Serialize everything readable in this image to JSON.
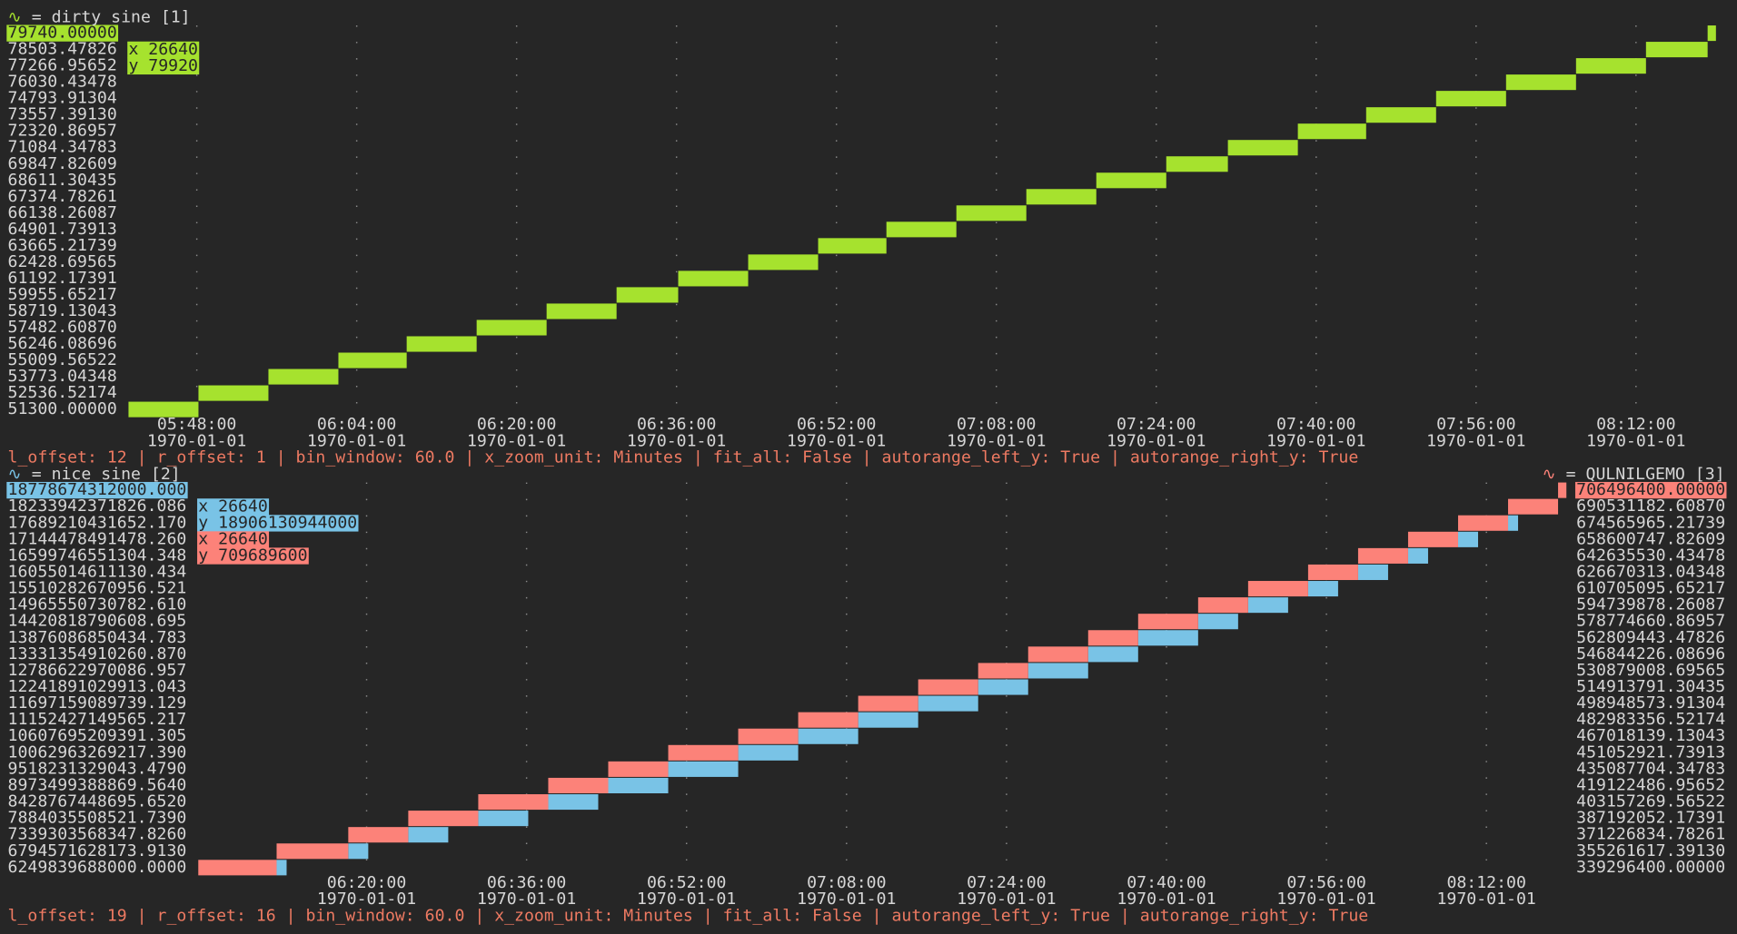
{
  "legend_sep": "=",
  "chart_data": [
    {
      "type": "bar",
      "status": "l_offset: 12 | r_offset: 1 | bin_window: 60.0 | x_zoom_unit: Minutes | fit_all: False | autorange_left_y: True | autorange_right_y: True",
      "status_color": "#ee7a62",
      "grid": true,
      "xlim": [
        20470,
        30000
      ],
      "xticks": [
        {
          "value": 20880,
          "label": "05:48:00\n1970-01-01"
        },
        {
          "value": 21840,
          "label": "06:04:00\n1970-01-01"
        },
        {
          "value": 22800,
          "label": "06:20:00\n1970-01-01"
        },
        {
          "value": 23760,
          "label": "06:36:00\n1970-01-01"
        },
        {
          "value": 24720,
          "label": "06:52:00\n1970-01-01"
        },
        {
          "value": 25680,
          "label": "07:08:00\n1970-01-01"
        },
        {
          "value": 26640,
          "label": "07:24:00\n1970-01-01"
        },
        {
          "value": 27600,
          "label": "07:40:00\n1970-01-01"
        },
        {
          "value": 28560,
          "label": "07:56:00\n1970-01-01"
        },
        {
          "value": 29520,
          "label": "08:12:00\n1970-01-01"
        }
      ],
      "ylim": [
        51300,
        79740
      ],
      "yticks": [
        {
          "value": 79740,
          "label": "79740.00000"
        },
        {
          "value": 78503.47826,
          "label": "78503.47826"
        },
        {
          "value": 77266.95652,
          "label": "77266.95652"
        },
        {
          "value": 76030.43478,
          "label": "76030.43478"
        },
        {
          "value": 74793.91304,
          "label": "74793.91304"
        },
        {
          "value": 73557.3913,
          "label": "73557.39130"
        },
        {
          "value": 72320.86957,
          "label": "72320.86957"
        },
        {
          "value": 71084.34783,
          "label": "71084.34783"
        },
        {
          "value": 69847.82609,
          "label": "69847.82609"
        },
        {
          "value": 68611.30435,
          "label": "68611.30435"
        },
        {
          "value": 67374.78261,
          "label": "67374.78261"
        },
        {
          "value": 66138.26087,
          "label": "66138.26087"
        },
        {
          "value": 64901.73913,
          "label": "64901.73913"
        },
        {
          "value": 63665.21739,
          "label": "63665.21739"
        },
        {
          "value": 62428.69565,
          "label": "62428.69565"
        },
        {
          "value": 61192.17391,
          "label": "61192.17391"
        },
        {
          "value": 59955.65217,
          "label": "59955.65217"
        },
        {
          "value": 58719.13043,
          "label": "58719.13043"
        },
        {
          "value": 57482.6087,
          "label": "57482.60870"
        },
        {
          "value": 56246.08696,
          "label": "56246.08696"
        },
        {
          "value": 55009.56522,
          "label": "55009.56522"
        },
        {
          "value": 53773.04348,
          "label": "53773.04348"
        },
        {
          "value": 52536.52174,
          "label": "52536.52174"
        },
        {
          "value": 51300,
          "label": "51300.00000"
        }
      ],
      "series": [
        {
          "name": "dirty sine [1]",
          "symbol": "∿",
          "color": "#a6e22e",
          "axis": "y",
          "legend_corner": "top-left",
          "cursor_labels": [
            "x 26640",
            "y 79920"
          ],
          "bins": [
            20470,
            20890,
            21310,
            21730,
            22140,
            22560,
            22980,
            23400,
            23770,
            24190,
            24610,
            25020,
            25440,
            25860,
            26280,
            26700,
            27070,
            27490,
            27900,
            28320,
            28740,
            29160,
            29580,
            29950,
            30000
          ],
          "values": [
            51300,
            52536.52174,
            53773.04348,
            55009.56522,
            56246.08696,
            57482.6087,
            58719.13043,
            59955.65217,
            61192.17391,
            62428.69565,
            63665.21739,
            64901.73913,
            66138.26087,
            67374.78261,
            68611.30435,
            69847.82609,
            71084.34783,
            72320.86957,
            73557.3913,
            74793.91304,
            76030.43478,
            77266.95652,
            78503.47826,
            79740
          ]
        }
      ]
    },
    {
      "type": "bar",
      "status": "l_offset: 19 | r_offset: 16 | bin_window: 60.0 | x_zoom_unit: Minutes | fit_all: False | autorange_left_y: True | autorange_right_y: True",
      "status_color": "#ee7a62",
      "grid": true,
      "xlim": [
        21790,
        30000
      ],
      "xticks": [
        {
          "value": 22800,
          "label": "06:20:00\n1970-01-01"
        },
        {
          "value": 23760,
          "label": "06:36:00\n1970-01-01"
        },
        {
          "value": 24720,
          "label": "06:52:00\n1970-01-01"
        },
        {
          "value": 25680,
          "label": "07:08:00\n1970-01-01"
        },
        {
          "value": 26640,
          "label": "07:24:00\n1970-01-01"
        },
        {
          "value": 27600,
          "label": "07:40:00\n1970-01-01"
        },
        {
          "value": 28560,
          "label": "07:56:00\n1970-01-01"
        },
        {
          "value": 29520,
          "label": "08:12:00\n1970-01-01"
        }
      ],
      "ylim": [
        6249839688000,
        18778674312000
      ],
      "yticks": [
        {
          "value": 18778674312000,
          "label": "18778674312000.000"
        },
        {
          "value": 18233942371826.086,
          "label": "18233942371826.086"
        },
        {
          "value": 17689210431652.17,
          "label": "17689210431652.170"
        },
        {
          "value": 17144478491478.26,
          "label": "17144478491478.260"
        },
        {
          "value": 16599746551304.348,
          "label": "16599746551304.348"
        },
        {
          "value": 16055014611130.434,
          "label": "16055014611130.434"
        },
        {
          "value": 15510282670956.521,
          "label": "15510282670956.521"
        },
        {
          "value": 14965550730782.61,
          "label": "14965550730782.610"
        },
        {
          "value": 14420818790608.695,
          "label": "14420818790608.695"
        },
        {
          "value": 13876086850434.783,
          "label": "13876086850434.783"
        },
        {
          "value": 13331354910260.87,
          "label": "13331354910260.870"
        },
        {
          "value": 12786622970086.957,
          "label": "12786622970086.957"
        },
        {
          "value": 12241891029913.043,
          "label": "12241891029913.043"
        },
        {
          "value": 11697159089739.129,
          "label": "11697159089739.129"
        },
        {
          "value": 11152427149565.217,
          "label": "11152427149565.217"
        },
        {
          "value": 10607695209391.305,
          "label": "10607695209391.305"
        },
        {
          "value": 10062963269217.39,
          "label": "10062963269217.390"
        },
        {
          "value": 9518231329043.479,
          "label": "9518231329043.4790"
        },
        {
          "value": 8973499388869.564,
          "label": "8973499388869.5640"
        },
        {
          "value": 8428767448695.652,
          "label": "8428767448695.6520"
        },
        {
          "value": 7884035508521.739,
          "label": "7884035508521.7390"
        },
        {
          "value": 7339303568347.826,
          "label": "7339303568347.8260"
        },
        {
          "value": 6794571628173.913,
          "label": "6794571628173.9130"
        },
        {
          "value": 6249839688000,
          "label": "6249839688000.0000"
        }
      ],
      "y2lim": [
        339296400,
        706496400
      ],
      "y2ticks": [
        {
          "value": 706496400,
          "label": "706496400.00000"
        },
        {
          "value": 690531182.6087,
          "label": "690531182.60870"
        },
        {
          "value": 674565965.21739,
          "label": "674565965.21739"
        },
        {
          "value": 658600747.82609,
          "label": "658600747.82609"
        },
        {
          "value": 642635530.43478,
          "label": "642635530.43478"
        },
        {
          "value": 626670313.04348,
          "label": "626670313.04348"
        },
        {
          "value": 610705095.65217,
          "label": "610705095.65217"
        },
        {
          "value": 594739878.26087,
          "label": "594739878.26087"
        },
        {
          "value": 578774660.86957,
          "label": "578774660.86957"
        },
        {
          "value": 562809443.47826,
          "label": "562809443.47826"
        },
        {
          "value": 546844226.08696,
          "label": "546844226.08696"
        },
        {
          "value": 530879008.69565,
          "label": "530879008.69565"
        },
        {
          "value": 514913791.30435,
          "label": "514913791.30435"
        },
        {
          "value": 498948573.91304,
          "label": "498948573.91304"
        },
        {
          "value": 482983356.52174,
          "label": "482983356.52174"
        },
        {
          "value": 467018139.13043,
          "label": "467018139.13043"
        },
        {
          "value": 451052921.73913,
          "label": "451052921.73913"
        },
        {
          "value": 435087704.34783,
          "label": "435087704.34783"
        },
        {
          "value": 419122486.95652,
          "label": "419122486.95652"
        },
        {
          "value": 403157269.56522,
          "label": "403157269.56522"
        },
        {
          "value": 387192052.17391,
          "label": "387192052.17391"
        },
        {
          "value": 371226834.78261,
          "label": "371226834.78261"
        },
        {
          "value": 355261617.3913,
          "label": "355261617.39130"
        },
        {
          "value": 339296400,
          "label": "339296400.00000"
        }
      ],
      "series": [
        {
          "name": "nice sine [2]",
          "symbol": "∿",
          "color": "#79c3e6",
          "axis": "y",
          "legend_corner": "top-left",
          "cursor_labels": [
            "x 26640",
            "y 18906130944000"
          ],
          "bins": [
            22260,
            22320,
            22690,
            22810,
            23050,
            23290,
            23470,
            23770,
            23890,
            24190,
            24250,
            24610,
            25030,
            25390,
            25750,
            26110,
            26470,
            26770,
            27130,
            27430,
            27790,
            28030,
            28090,
            28330,
            28450,
            28630,
            28750,
            28930,
            29050,
            29170,
            29350,
            29470,
            29650,
            29710
          ],
          "values": [
            6249839688000,
            null,
            6794571628173.913,
            null,
            7339303568347.826,
            null,
            7884035508521.739,
            null,
            8428767448695.652,
            null,
            8973499388869.564,
            9518231329043.479,
            10062963269217.39,
            10607695209391.305,
            11152427149565.217,
            11697159089739.129,
            12241891029913.043,
            12786622970086.957,
            13331354910260.87,
            13876086850434.783,
            14420818790608.695,
            null,
            14965550730782.61,
            null,
            15510282670956.521,
            null,
            16055014611130.434,
            null,
            16599746551304.348,
            null,
            17144478491478.26,
            null,
            17689210431652.17
          ]
        },
        {
          "name": "QULNILGEMO [3]",
          "symbol": "∿",
          "color": "#fc8279",
          "axis": "y2",
          "legend_corner": "top-right",
          "cursor_labels": [
            "x 26640",
            "y 709689600"
          ],
          "bins": [
            21790,
            22260,
            22690,
            23050,
            23470,
            23890,
            24250,
            24610,
            25030,
            25390,
            25750,
            26110,
            26470,
            26770,
            27130,
            27430,
            27790,
            28090,
            28450,
            28750,
            29050,
            29350,
            29650,
            29950,
            30000
          ],
          "values": [
            339296400,
            355261617.3913,
            371226834.78261,
            387192052.17391,
            403157269.56522,
            419122486.95652,
            435087704.34783,
            451052921.73913,
            467018139.13043,
            482983356.52174,
            498948573.91304,
            514913791.30435,
            530879008.69565,
            546844226.08696,
            562809443.47826,
            578774660.86957,
            594739878.26087,
            610705095.65217,
            626670313.04348,
            642635530.43478,
            658600747.82609,
            674565965.21739,
            690531182.6087,
            706496400
          ]
        }
      ]
    }
  ]
}
